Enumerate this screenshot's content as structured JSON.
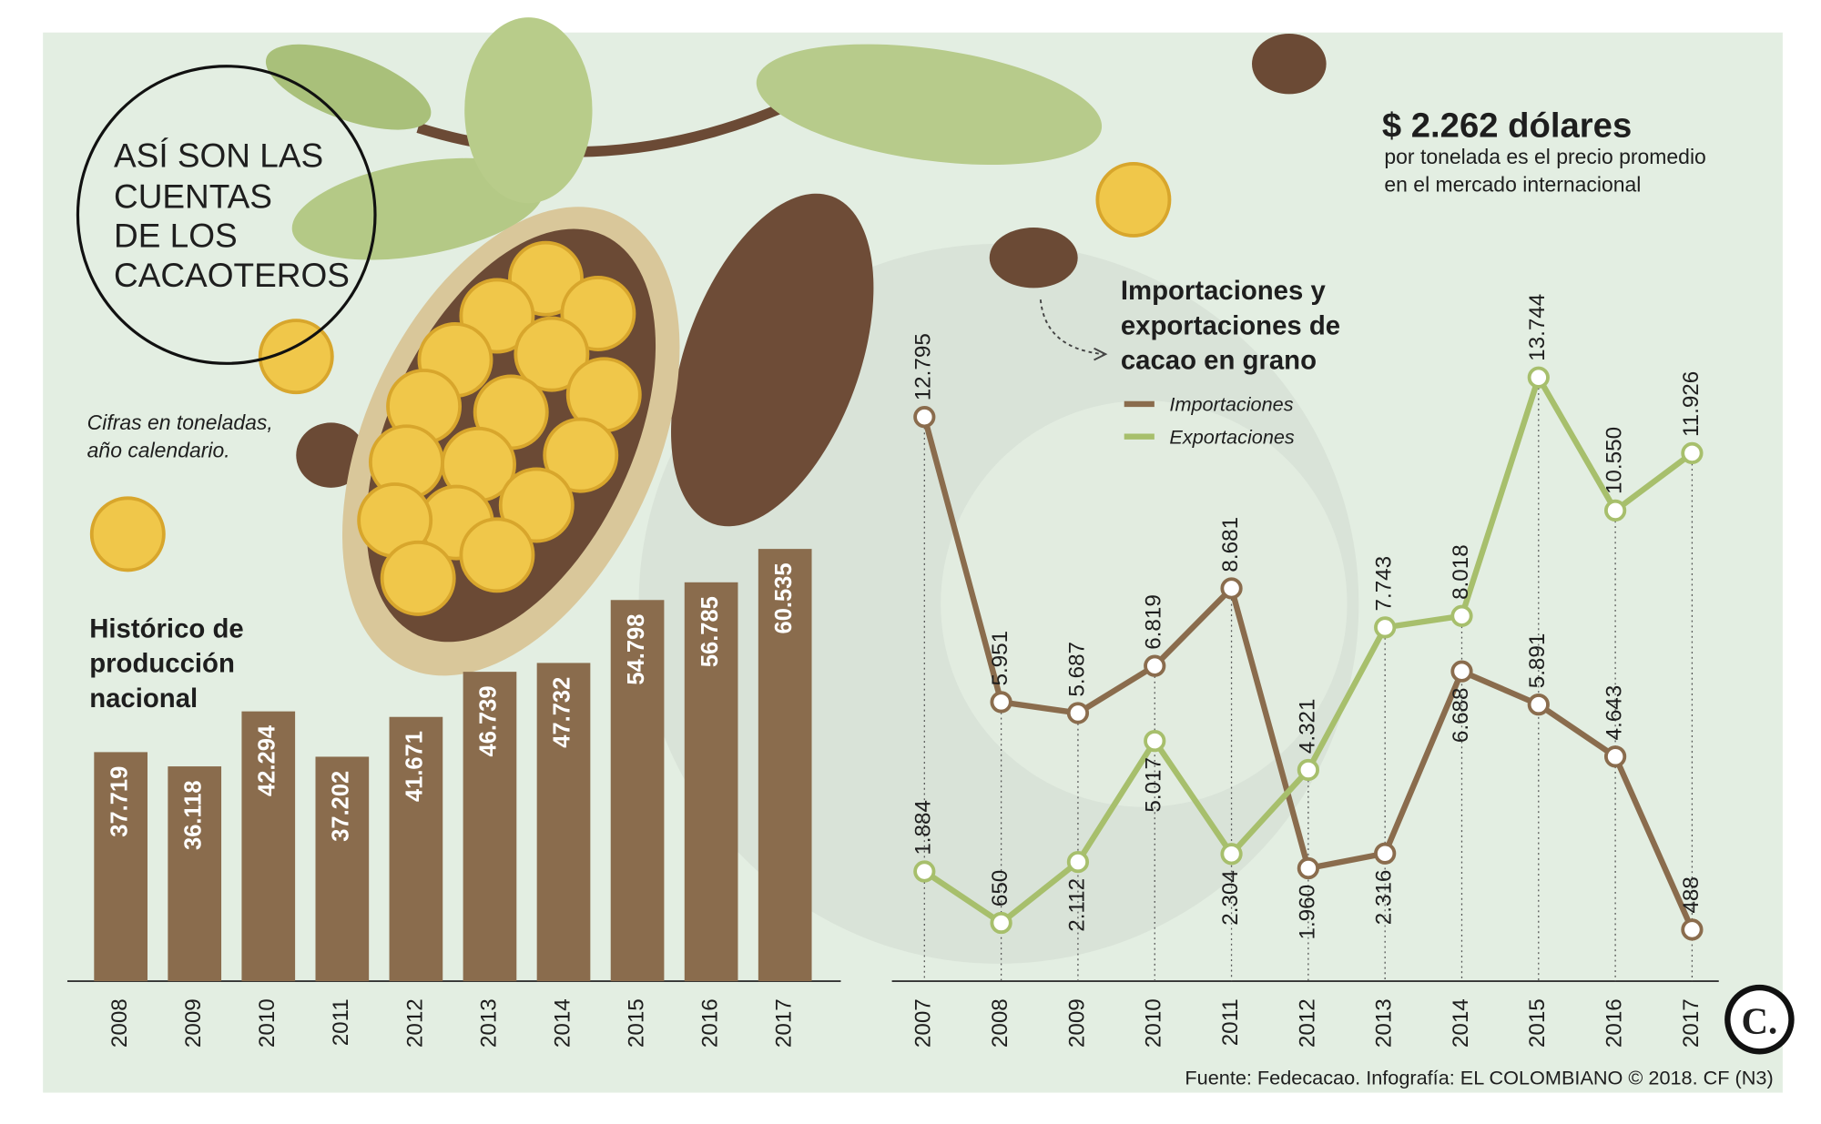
{
  "header": {
    "title": [
      "ASÍ SON LAS",
      "CUENTAS",
      "DE LOS",
      "CACAOTEROS"
    ],
    "note": [
      "Cifras en toneladas,",
      "año calendario."
    ],
    "price": "$ 2.262 dólares",
    "price_note": [
      "por tonelada es el precio promedio",
      "en el mercado internacional"
    ]
  },
  "chart_data": [
    {
      "type": "bar",
      "title": [
        "Histórico de",
        "producción",
        "nacional"
      ],
      "categories": [
        "2008",
        "2009",
        "2010",
        "2011",
        "2012",
        "2013",
        "2014",
        "2015",
        "2016",
        "2017"
      ],
      "values": [
        37719,
        36118,
        42294,
        37202,
        41671,
        46739,
        47732,
        54798,
        56785,
        60535
      ],
      "value_labels": [
        "37.719",
        "36.118",
        "42.294",
        "37.202",
        "41.671",
        "46.739",
        "47.732",
        "54.798",
        "56.785",
        "60.535"
      ],
      "color": "#8a6c4d",
      "ylim": [
        12000,
        62000
      ]
    },
    {
      "type": "line",
      "title": [
        "Importaciones y",
        "exportaciones de",
        "cacao en grano"
      ],
      "categories": [
        "2007",
        "2008",
        "2009",
        "2010",
        "2011",
        "2012",
        "2013",
        "2014",
        "2015",
        "2016",
        "2017"
      ],
      "series": [
        {
          "name": "Importaciones",
          "color": "#8a6c4d",
          "values": [
            12795,
            5951,
            5687,
            6819,
            8681,
            1960,
            2316,
            6688,
            5891,
            4643,
            488
          ],
          "value_labels": [
            "12.795",
            "5.951",
            "5.687",
            "6.819",
            "8.681",
            "1.960",
            "2.316",
            "6.688",
            "5.891",
            "4.643",
            "488"
          ]
        },
        {
          "name": "Exportaciones",
          "color": "#a7bf6c",
          "values": [
            1884,
            650,
            2112,
            5017,
            2304,
            4321,
            7743,
            8018,
            13744,
            10550,
            11926
          ],
          "value_labels": [
            "1.884",
            "650",
            "2.112",
            "5.017",
            "2.304",
            "4.321",
            "7.743",
            "8.018",
            "13.744",
            "10.550",
            "11.926"
          ]
        }
      ],
      "ylim": [
        -750,
        15000
      ]
    }
  ],
  "source": "Fuente: Fedecacao. Infografía: EL COLOMBIANO © 2018. CF (N3)",
  "logo": "C."
}
